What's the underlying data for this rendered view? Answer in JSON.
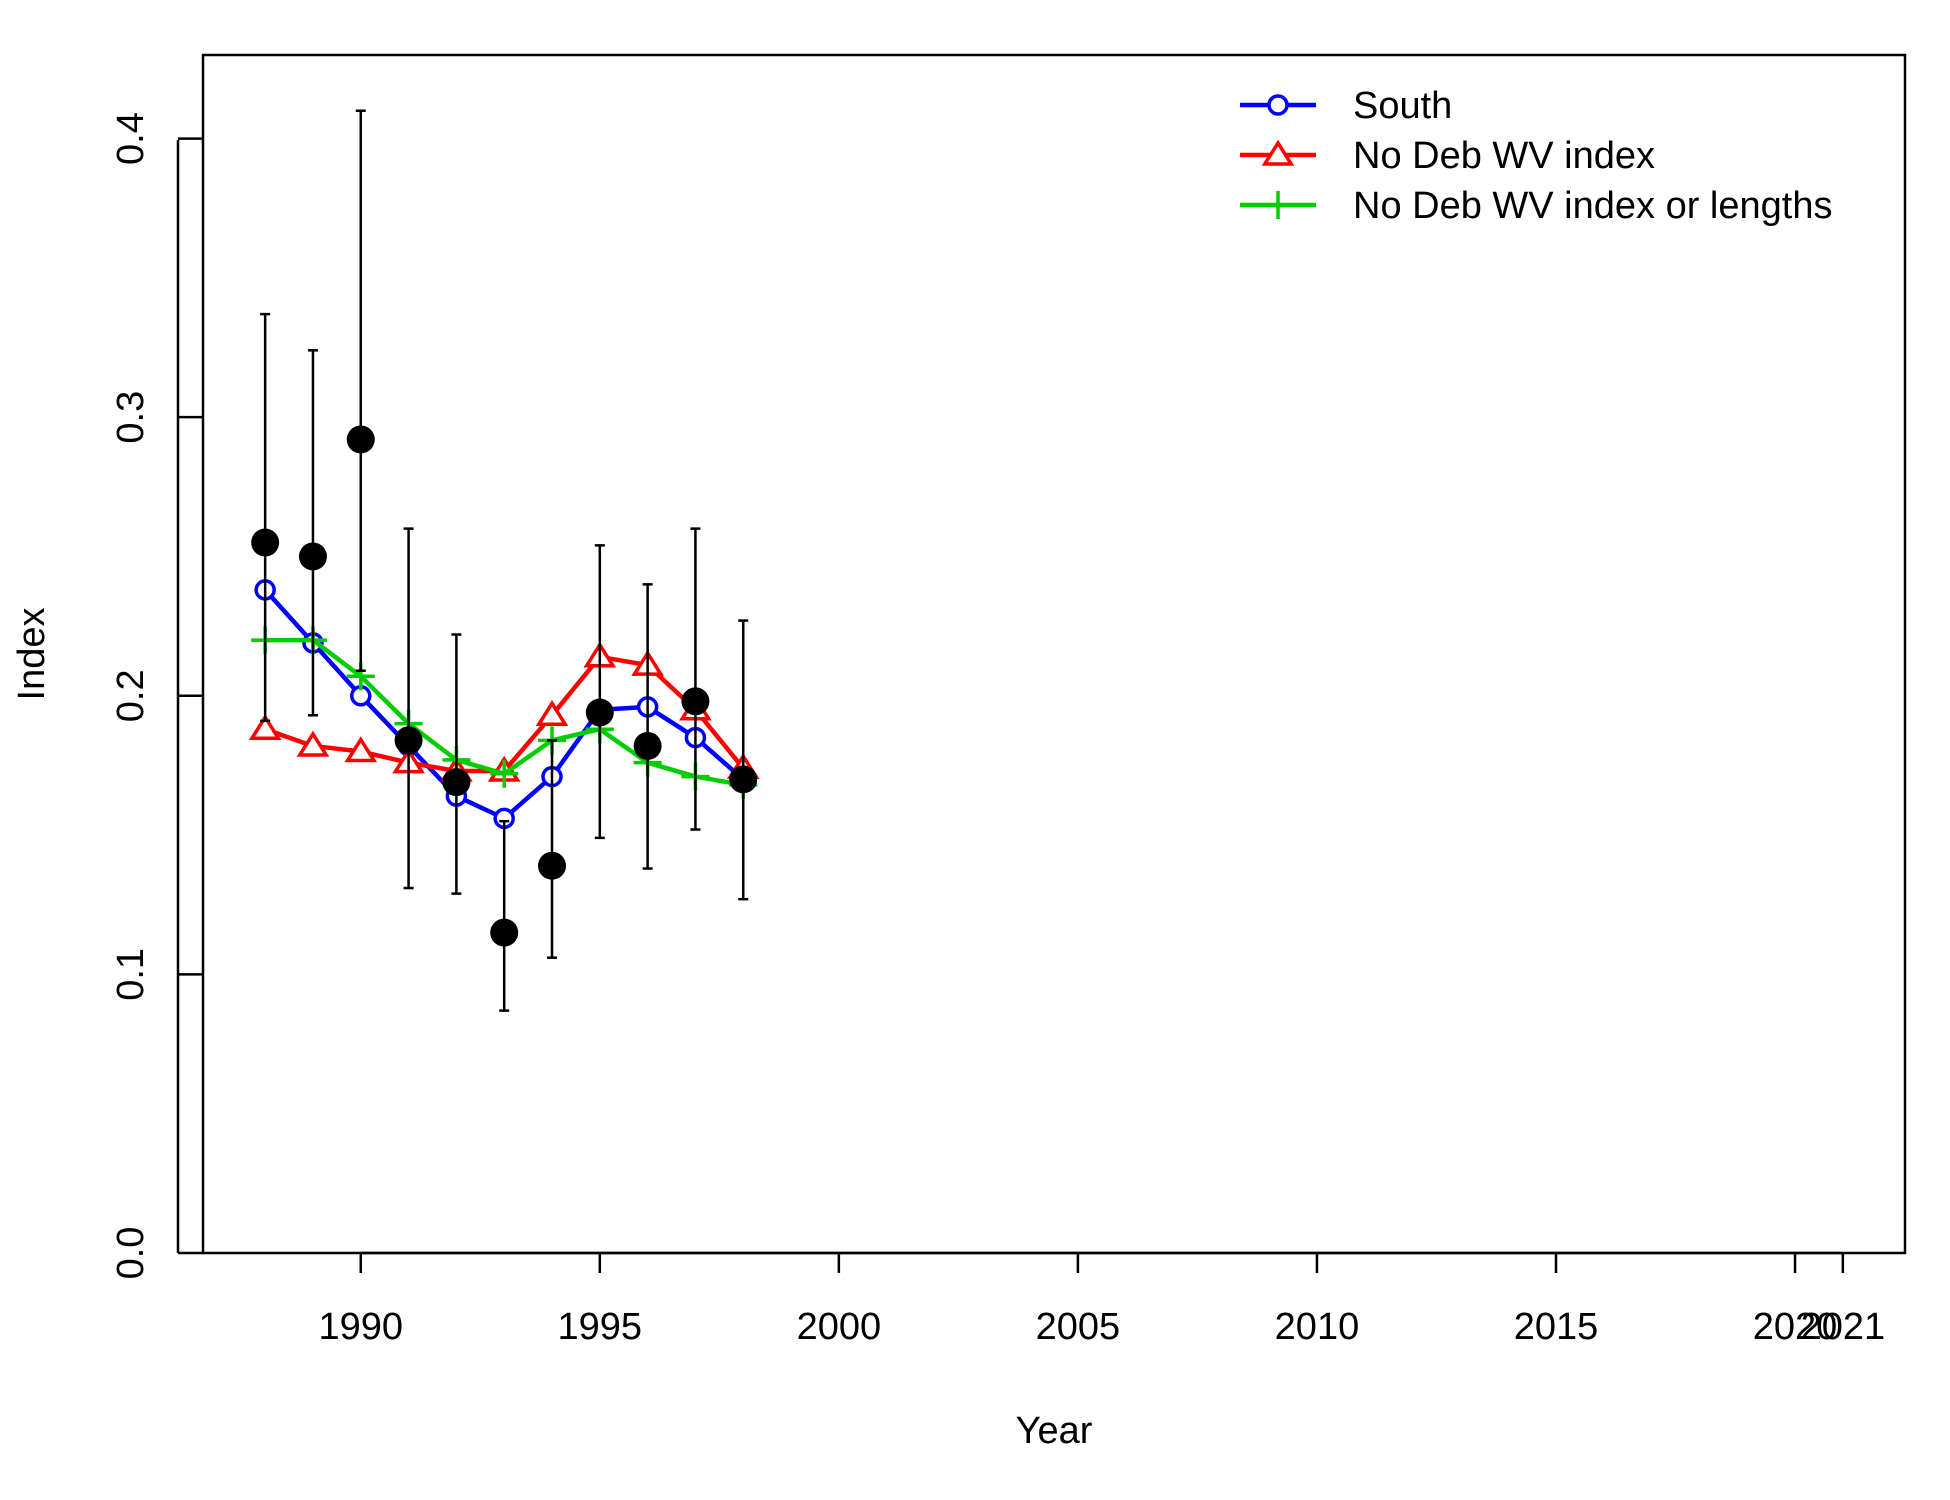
{
  "chart_data": {
    "type": "line",
    "xlabel": "Year",
    "ylabel": "Index",
    "xlim": [
      1986.7,
      2022.3
    ],
    "ylim": [
      0,
      0.43
    ],
    "x_ticks": [
      "1990",
      "1995",
      "2000",
      "2005",
      "2010",
      "2015",
      "2020",
      "2021"
    ],
    "x_tick_values": [
      1990,
      1995,
      2000,
      2005,
      2010,
      2015,
      2020,
      2021
    ],
    "y_ticks": [
      "0.0",
      "0.1",
      "0.2",
      "0.3",
      "0.4"
    ],
    "y_tick_values": [
      0.0,
      0.1,
      0.2,
      0.3,
      0.4
    ],
    "legend_position": "top-right",
    "observed": {
      "x": [
        1988,
        1989,
        1990,
        1991,
        1992,
        1993,
        1994,
        1995,
        1996,
        1997,
        1998
      ],
      "y": [
        0.255,
        0.25,
        0.292,
        0.184,
        0.169,
        0.115,
        0.139,
        0.194,
        0.182,
        0.198,
        0.17
      ],
      "lower": [
        0.191,
        0.193,
        0.209,
        0.131,
        0.129,
        0.087,
        0.106,
        0.149,
        0.138,
        0.152,
        0.127
      ],
      "upper": [
        0.337,
        0.324,
        0.41,
        0.26,
        0.222,
        0.155,
        0.184,
        0.254,
        0.24,
        0.26,
        0.227
      ]
    },
    "series": [
      {
        "name": "South",
        "color": "#0000ff",
        "marker": "circle",
        "x": [
          1988,
          1989,
          1990,
          1991,
          1992,
          1993,
          1994,
          1995,
          1996,
          1997,
          1998
        ],
        "values": [
          0.238,
          0.219,
          0.2,
          0.182,
          0.164,
          0.156,
          0.171,
          0.195,
          0.196,
          0.185,
          0.17
        ]
      },
      {
        "name": "No Deb WV index",
        "color": "#ff0000",
        "marker": "triangle",
        "x": [
          1988,
          1989,
          1990,
          1991,
          1992,
          1993,
          1994,
          1995,
          1996,
          1997,
          1998
        ],
        "values": [
          0.188,
          0.182,
          0.18,
          0.176,
          0.173,
          0.173,
          0.193,
          0.214,
          0.211,
          0.195,
          0.174
        ]
      },
      {
        "name": "No Deb WV index or lengths",
        "color": "#00cd00",
        "marker": "plus",
        "x": [
          1988,
          1989,
          1990,
          1991,
          1992,
          1993,
          1994,
          1995,
          1996,
          1997,
          1998
        ],
        "values": [
          0.22,
          0.22,
          0.207,
          0.19,
          0.177,
          0.172,
          0.184,
          0.188,
          0.176,
          0.171,
          0.168
        ]
      }
    ]
  }
}
